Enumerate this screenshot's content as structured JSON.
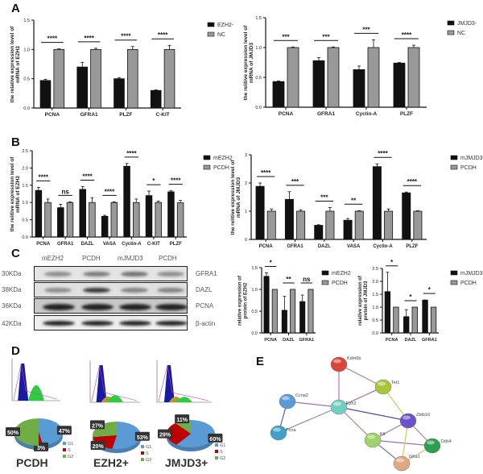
{
  "panel_labels": {
    "A": "A",
    "B": "B",
    "C": "C",
    "D": "D",
    "E": "E"
  },
  "chart_data": [
    {
      "id": "A-left",
      "type": "bar",
      "ylabel": "the relative expression level of mRNA of EZH2",
      "ylim": [
        0,
        1.5
      ],
      "yticks": [
        "0.0",
        "0.5",
        "1.0",
        "1.5"
      ],
      "categories": [
        "PCNA",
        "GFRA1",
        "PLZF",
        "C-KIT"
      ],
      "series": [
        {
          "name": "EZH2-",
          "color": "#111111",
          "values": [
            0.47,
            0.7,
            0.5,
            0.3
          ],
          "errors": [
            0.02,
            0.08,
            0.02,
            0.01
          ]
        },
        {
          "name": "NC",
          "color": "#999999",
          "values": [
            1.0,
            1.0,
            1.0,
            1.0
          ],
          "errors": [
            0.01,
            0.02,
            0.05,
            0.07
          ]
        }
      ],
      "significance": [
        "****",
        "****",
        "****",
        "****"
      ]
    },
    {
      "id": "A-right",
      "type": "bar",
      "ylabel": "the relitive expression level of mRNA of JMJD3",
      "ylim": [
        0,
        1.5
      ],
      "yticks": [
        "0.0",
        "0.5",
        "1.0",
        "1.5"
      ],
      "categories": [
        "PCNA",
        "GFRA1",
        "Cyclin-A",
        "PLZF"
      ],
      "series": [
        {
          "name": "JMJD3-",
          "color": "#111111",
          "values": [
            0.43,
            0.78,
            0.63,
            0.74
          ],
          "errors": [
            0.01,
            0.05,
            0.06,
            0.01
          ]
        },
        {
          "name": "NC",
          "color": "#999999",
          "values": [
            1.0,
            1.0,
            1.0,
            1.0
          ],
          "errors": [
            0.01,
            0.01,
            0.13,
            0.04
          ]
        }
      ],
      "significance": [
        "***",
        "***",
        "***",
        "****"
      ]
    },
    {
      "id": "B-left",
      "type": "bar",
      "ylabel": "the relitive expression level of mRNA of EZH2",
      "ylim": [
        0,
        2.5
      ],
      "yticks": [
        "0.0",
        "0.5",
        "1.0",
        "1.5",
        "2.0",
        "2.5"
      ],
      "categories": [
        "PCNA",
        "GFRA1",
        "DAZL",
        "VASA",
        "Cyclin-A",
        "C-KIT",
        "PLZF"
      ],
      "series": [
        {
          "name": "mEZH2",
          "color": "#111111",
          "values": [
            1.35,
            0.85,
            1.38,
            0.6,
            2.05,
            1.2,
            1.31
          ],
          "errors": [
            0.09,
            0.1,
            0.08,
            0.03,
            0.08,
            0.13,
            0.03
          ]
        },
        {
          "name": "PCDH",
          "color": "#999999",
          "values": [
            1.0,
            1.0,
            1.0,
            1.0,
            1.0,
            1.0,
            0.99
          ],
          "errors": [
            0.1,
            0.02,
            0.14,
            0.02,
            0.1,
            0.04,
            0.07
          ]
        }
      ],
      "significance": [
        "****",
        "ns",
        "****",
        "****",
        "****",
        "*",
        "****"
      ]
    },
    {
      "id": "B-right",
      "type": "bar",
      "ylabel": "the relitive expression level of mRNA of JMJD3",
      "ylim": [
        0,
        3
      ],
      "yticks": [
        "0",
        "1",
        "2",
        "3"
      ],
      "categories": [
        "PCNA",
        "GFRA1",
        "DAZL",
        "VASA",
        "Cyclin-A",
        "PLZF"
      ],
      "series": [
        {
          "name": "mJMJD3",
          "color": "#111111",
          "values": [
            1.88,
            1.42,
            0.5,
            0.68,
            2.58,
            1.65
          ],
          "errors": [
            0.12,
            0.27,
            0.02,
            0.06,
            0.1,
            0.03
          ]
        },
        {
          "name": "PCDH",
          "color": "#999999",
          "values": [
            1.0,
            1.0,
            1.0,
            1.0,
            1.0,
            1.0
          ],
          "errors": [
            0.08,
            0.05,
            0.13,
            0.02,
            0.08,
            0.02
          ]
        }
      ],
      "significance": [
        "****",
        "***",
        "***",
        "**",
        "****",
        "****"
      ]
    },
    {
      "id": "C-mid",
      "type": "bar",
      "ylabel": "relative expression of protein of EZH2",
      "ylim": [
        0,
        1.5
      ],
      "yticks": [
        "0.0",
        "0.5",
        "1.0",
        "1.5"
      ],
      "categories": [
        "PCNA",
        "DAZL",
        "GFRA1"
      ],
      "series": [
        {
          "name": "mEZH2",
          "color": "#111111",
          "values": [
            1.3,
            0.52,
            0.72
          ],
          "errors": [
            0.08,
            0.32,
            0.15
          ]
        },
        {
          "name": "PCDH",
          "color": "#999999",
          "values": [
            1.0,
            1.0,
            1.0
          ],
          "errors": [
            0,
            0,
            0
          ]
        }
      ],
      "significance": [
        "*",
        "**",
        "ns"
      ]
    },
    {
      "id": "C-right",
      "type": "bar",
      "ylabel": "relative expression of protein of JMJD3",
      "ylim": [
        0,
        2.5
      ],
      "yticks": [
        "0.0",
        "0.5",
        "1.0",
        "1.5",
        "2.0",
        "2.5"
      ],
      "categories": [
        "PCNA",
        "DAZL",
        "GFRA1"
      ],
      "series": [
        {
          "name": "mJMJD3",
          "color": "#111111",
          "values": [
            1.6,
            0.63,
            1.27
          ],
          "errors": [
            0.75,
            0.27,
            0.01
          ]
        },
        {
          "name": "PCDH",
          "color": "#999999",
          "values": [
            1.0,
            1.0,
            1.0
          ],
          "errors": [
            0,
            0,
            0
          ]
        }
      ],
      "significance": [
        "*",
        "*",
        "*"
      ]
    },
    {
      "id": "D-pies",
      "type": "pie",
      "legend": [
        "G1",
        "S",
        "G2"
      ],
      "colors": [
        "#5b9bd5",
        "#c00000",
        "#70ad47"
      ],
      "pies": [
        {
          "name": "PCDH",
          "values": [
            47,
            3,
            50
          ],
          "labels": [
            "47%",
            "3%",
            "50%"
          ]
        },
        {
          "name": "EZH2+",
          "values": [
            53,
            20,
            27
          ],
          "labels": [
            "53%",
            "20%",
            "27%"
          ]
        },
        {
          "name": "JMJD3+",
          "values": [
            60,
            29,
            11
          ],
          "labels": [
            "60%",
            "29%",
            "11%"
          ]
        }
      ]
    }
  ],
  "western_blot": {
    "columns": [
      "mEZH2",
      "PCDH",
      "mJMJD3",
      "PCDH"
    ],
    "rows": [
      {
        "protein": "GFRA1",
        "size": "30KDa"
      },
      {
        "protein": "DAZL",
        "size": "38KDa"
      },
      {
        "protein": "PCNA",
        "size": "36KDa"
      },
      {
        "protein": "β-actin",
        "size": "42KDa"
      }
    ]
  },
  "network": {
    "nodes": [
      {
        "label": "Kdm6b",
        "color": "#d9453a"
      },
      {
        "label": "Tet1",
        "color": "#a8c63a"
      },
      {
        "label": "Ccna2",
        "color": "#5b9bd5"
      },
      {
        "label": "Ezh2",
        "color": "#6fd0c0"
      },
      {
        "label": "Pcna",
        "color": "#3fa0c8"
      },
      {
        "label": "Zbtb16",
        "color": "#6a52c8"
      },
      {
        "label": "Kit",
        "color": "#9ed36a"
      },
      {
        "label": "Ddx4",
        "color": "#2e9e50"
      },
      {
        "label": "Gfra1",
        "color": "#e0a880"
      }
    ]
  }
}
